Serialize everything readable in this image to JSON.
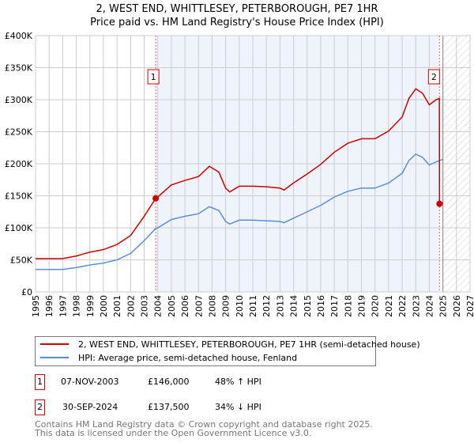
{
  "title_line1": "2, WEST END, WHITTLESEY, PETERBOROUGH, PE7 1HR",
  "title_line2": "Price paid vs. HM Land Registry's House Price Index (HPI)",
  "colors": {
    "property": "#cc0000",
    "hpi": "#5b8fd4",
    "shade": "#eef3fc"
  },
  "chart_data": {
    "type": "line",
    "title": "Price paid vs. HM Land Registry's House Price Index (HPI)",
    "xlim": [
      1995,
      2027
    ],
    "ylim": [
      0,
      400000
    ],
    "x_ticks": [
      "1995",
      "1996",
      "1997",
      "1998",
      "1999",
      "2000",
      "2001",
      "2002",
      "2003",
      "2004",
      "2005",
      "2006",
      "2007",
      "2008",
      "2009",
      "2010",
      "2011",
      "2012",
      "2013",
      "2014",
      "2015",
      "2016",
      "2017",
      "2018",
      "2019",
      "2020",
      "2021",
      "2022",
      "2023",
      "2024",
      "2025",
      "2026",
      "2027"
    ],
    "y_ticks": [
      {
        "v": 0,
        "label": "£0"
      },
      {
        "v": 50000,
        "label": "£50K"
      },
      {
        "v": 100000,
        "label": "£100K"
      },
      {
        "v": 150000,
        "label": "£150K"
      },
      {
        "v": 200000,
        "label": "£200K"
      },
      {
        "v": 250000,
        "label": "£250K"
      },
      {
        "v": 300000,
        "label": "£300K"
      },
      {
        "v": 350000,
        "label": "£350K"
      },
      {
        "v": 400000,
        "label": "£400K"
      }
    ],
    "grid": true,
    "series": [
      {
        "name": "2, WEST END, WHITTLESEY, PETERBOROUGH, PE7 1HR (semi-detached house)",
        "x": [
          1995,
          1996,
          1997,
          1998,
          1999,
          2000,
          2001,
          2002,
          2003,
          2003.85,
          2004,
          2005,
          2006,
          2007,
          2007.8,
          2008.5,
          2009,
          2009.3,
          2010,
          2011,
          2012,
          2013,
          2013.3,
          2014,
          2015,
          2016,
          2017,
          2018,
          2019,
          2020,
          2021,
          2022,
          2022.5,
          2023,
          2023.5,
          2024,
          2024.5,
          2024.74,
          2024.75,
          2025
        ],
        "y": [
          52000,
          52000,
          52000,
          56000,
          62000,
          66000,
          74000,
          88000,
          118000,
          146000,
          148000,
          167000,
          174000,
          180000,
          196000,
          187000,
          162000,
          156000,
          165000,
          165000,
          164000,
          162000,
          159000,
          170000,
          184000,
          199000,
          218000,
          232000,
          239000,
          239000,
          251000,
          273000,
          302000,
          317000,
          310000,
          292000,
          300000,
          302000,
          137500,
          139000
        ]
      },
      {
        "name": "HPI: Average price, semi-detached house, Fenland",
        "x": [
          1995,
          1996,
          1997,
          1998,
          1999,
          2000,
          2001,
          2002,
          2003,
          2003.85,
          2004,
          2005,
          2006,
          2007,
          2007.8,
          2008.5,
          2009,
          2009.3,
          2010,
          2011,
          2012,
          2013,
          2013.3,
          2014,
          2015,
          2016,
          2017,
          2018,
          2019,
          2020,
          2021,
          2022,
          2022.5,
          2023,
          2023.5,
          2024,
          2024.5,
          2025
        ],
        "y": [
          35000,
          35000,
          35000,
          38000,
          42000,
          45000,
          50000,
          60000,
          80000,
          99000,
          100000,
          113000,
          118000,
          122000,
          133000,
          127000,
          110000,
          106000,
          112000,
          112000,
          111000,
          110000,
          108000,
          115000,
          125000,
          135000,
          148000,
          157000,
          162000,
          162000,
          170000,
          185000,
          205000,
          215000,
          210000,
          198000,
          203000,
          207000
        ]
      }
    ],
    "sales": [
      {
        "id": "1",
        "x": 2003.85,
        "y": 146000,
        "date": "07-NOV-2003",
        "price": "£146,000",
        "hpi_change": "48% ↑ HPI"
      },
      {
        "id": "2",
        "x": 2024.75,
        "y": 137500,
        "date": "30-SEP-2024",
        "price": "£137,500",
        "hpi_change": "34% ↓ HPI"
      }
    ],
    "forecast_from": 2025
  },
  "footer_line1": "Contains HM Land Registry data © Crown copyright and database right 2025.",
  "footer_line2": "This data is licensed under the Open Government Licence v3.0."
}
